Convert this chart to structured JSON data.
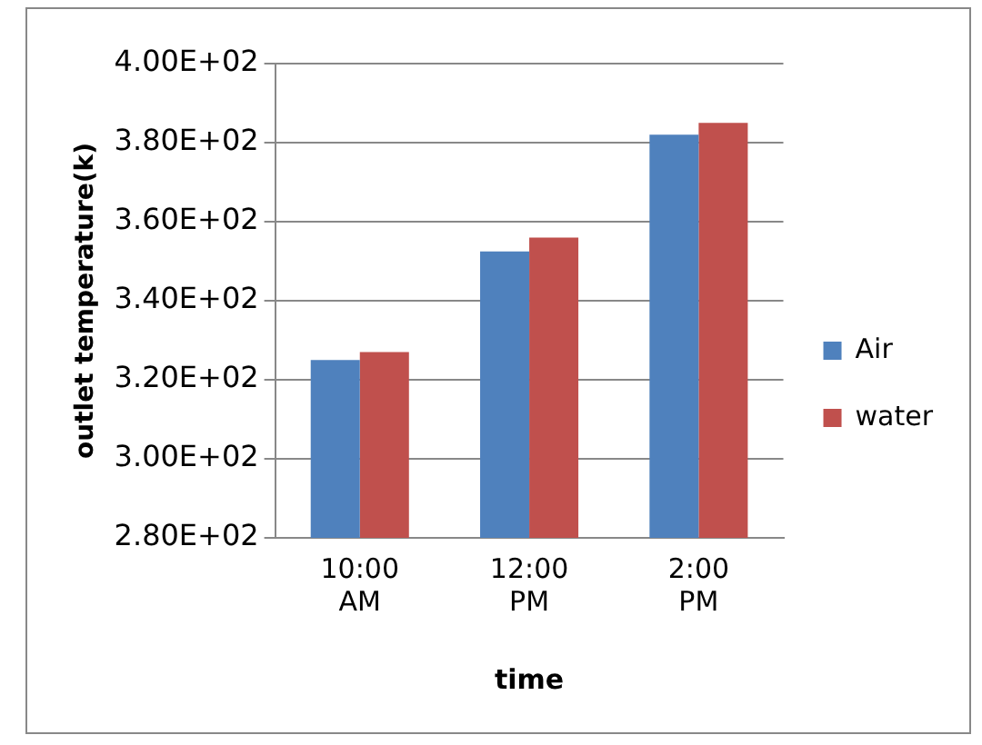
{
  "chart_data": {
    "type": "bar",
    "xlabel": "time",
    "ylabel": "outlet temperature(k)",
    "categories": [
      "10:00 AM",
      "12:00 PM",
      "2:00 PM"
    ],
    "series": [
      {
        "name": "Air",
        "color": "#4f81bd",
        "values": [
          325,
          352.5,
          382
        ]
      },
      {
        "name": "water",
        "color": "#c0504d",
        "values": [
          327,
          356,
          385
        ]
      }
    ],
    "ylim": [
      280,
      400
    ],
    "yticks": [
      {
        "value": 280,
        "label": "2.80E+02"
      },
      {
        "value": 300,
        "label": "3.00E+02"
      },
      {
        "value": 320,
        "label": "3.20E+02"
      },
      {
        "value": 340,
        "label": "3.40E+02"
      },
      {
        "value": 360,
        "label": "3.60E+02"
      },
      {
        "value": 380,
        "label": "3.80E+02"
      },
      {
        "value": 400,
        "label": "4.00E+02"
      }
    ],
    "grid": "y",
    "legend": "right"
  }
}
